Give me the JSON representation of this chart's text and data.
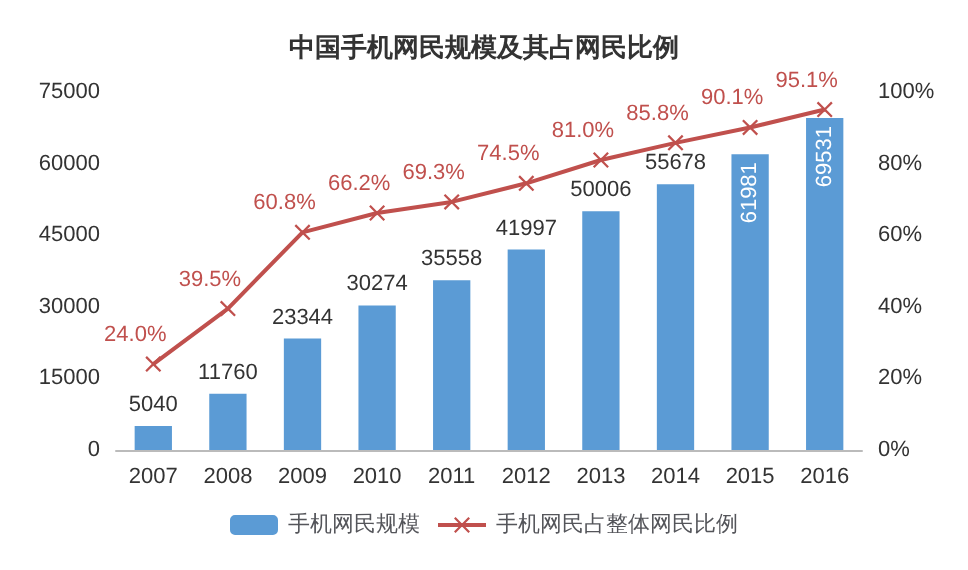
{
  "chart_data": {
    "type": "bar",
    "title": "中国手机网民规模及其占网民比例",
    "categories": [
      "2007",
      "2008",
      "2009",
      "2010",
      "2011",
      "2012",
      "2013",
      "2014",
      "2015",
      "2016"
    ],
    "series": [
      {
        "name": "手机网民规模",
        "color": "#5b9bd5",
        "values": [
          5040,
          11760,
          23344,
          30274,
          35558,
          41997,
          50006,
          55678,
          61981,
          69531
        ]
      },
      {
        "name": "手机网民占整体网民比例",
        "type": "line",
        "axis": "y2",
        "color": "#c0504d",
        "marker": "cross",
        "values": [
          24.0,
          39.5,
          60.8,
          66.2,
          69.3,
          74.5,
          81.0,
          85.8,
          90.1,
          95.1
        ],
        "value_labels": [
          "24.0%",
          "39.5%",
          "60.8%",
          "66.2%",
          "69.3%",
          "74.5%",
          "81.0%",
          "85.8%",
          "90.1%",
          "95.1%"
        ]
      }
    ],
    "data_labels": true,
    "ylim": [
      0,
      75000
    ],
    "yticks": [
      0,
      15000,
      30000,
      45000,
      60000,
      75000
    ],
    "y2lim": [
      0,
      100
    ],
    "y2ticks": [
      {
        "value": 0,
        "label": "0%"
      },
      {
        "value": 20,
        "label": "20%"
      },
      {
        "value": 40,
        "label": "40%"
      },
      {
        "value": 60,
        "label": "60%"
      },
      {
        "value": 80,
        "label": "80%"
      },
      {
        "value": 100,
        "label": "100%"
      }
    ],
    "legend": "bottom",
    "grid": false
  }
}
